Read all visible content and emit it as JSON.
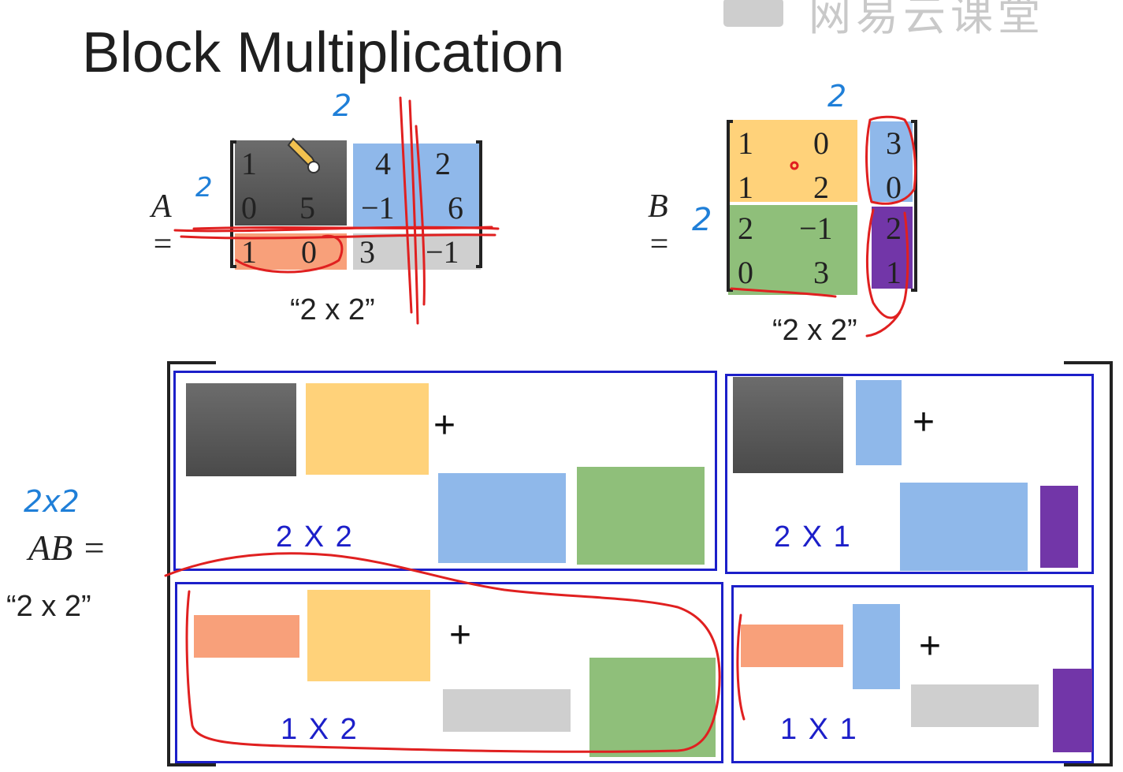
{
  "slide": {
    "title": "Block Multiplication",
    "watermark": "网易云课堂"
  },
  "matrix_a": {
    "label": "A =",
    "rows": [
      [
        "1",
        "",
        "4",
        "2"
      ],
      [
        "0",
        "5",
        "−1",
        "6"
      ],
      [
        "1",
        "0",
        "3",
        "−1"
      ]
    ],
    "size_label": "“2 x 2”"
  },
  "matrix_b": {
    "label": "B =",
    "rows": [
      [
        "1",
        "0",
        "3"
      ],
      [
        "1",
        "2",
        "0"
      ],
      [
        "2",
        "−1",
        "2"
      ],
      [
        "0",
        "3",
        "1"
      ]
    ],
    "size_label": "“2 x 2”"
  },
  "product": {
    "label": "AB =",
    "size_label": "“2 x 2”",
    "blocks": {
      "top_left": {
        "dim": "2 X 2",
        "plus": "+"
      },
      "top_right": {
        "dim": "2 X 1",
        "plus": "+"
      },
      "bottom_left": {
        "dim": "1 X 2",
        "plus": "+"
      },
      "bottom_right": {
        "dim": "1 X 1",
        "plus": "+"
      }
    }
  },
  "annotations": {
    "a_col_split": "2",
    "a_row_split": "2",
    "b_col_split": "2",
    "b_row_split": "2",
    "ab_size": "2x2"
  },
  "colors": {
    "dark_gray": "#5a5a5a",
    "yellow": "#ffd27a",
    "blue": "#8fb8ea",
    "green": "#8fbf7a",
    "salmon": "#f8a07a",
    "light_gray": "#cfcfcf",
    "purple": "#7236a8",
    "frame_blue": "#1c1fc9",
    "pen_red": "#e02020",
    "pen_blue": "#1f7fd8"
  }
}
